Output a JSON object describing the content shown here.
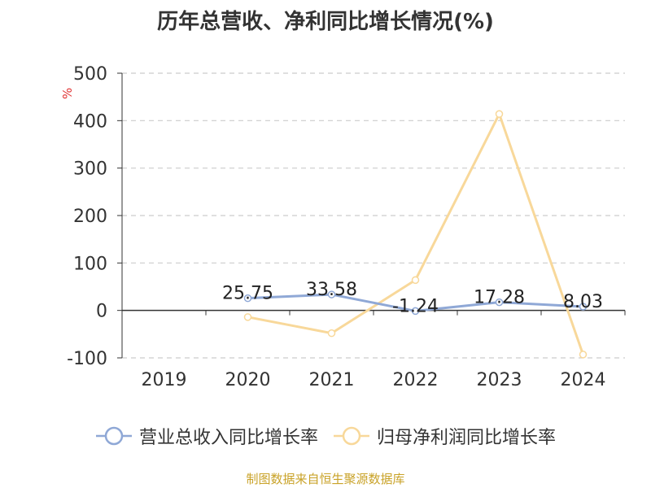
{
  "title": "历年总营收、净利同比增长情况(%)",
  "unit_label": "%",
  "source": "制图数据来自恒生聚源数据库",
  "chart_data": {
    "type": "line",
    "title": "历年总营收、净利同比增长情况(%)",
    "xlabel": "",
    "ylabel": "%",
    "categories": [
      "2019",
      "2020",
      "2021",
      "2022",
      "2023",
      "2024"
    ],
    "ylim": [
      -100,
      500
    ],
    "yticks": [
      -100,
      0,
      100,
      200,
      300,
      400,
      500
    ],
    "grid": true,
    "legend_position": "bottom",
    "series": [
      {
        "name": "营业总收入同比增长率",
        "color": "#8fa8d6",
        "values": [
          null,
          25.75,
          33.58,
          -1.24,
          17.28,
          8.03
        ],
        "labels": [
          null,
          "25.75",
          "33.58",
          "-1.24",
          "17.28",
          "8.03"
        ]
      },
      {
        "name": "归母净利润同比增长率",
        "color": "#f8d89a",
        "values": [
          null,
          -14,
          -48,
          64,
          414,
          -93
        ],
        "labels": [
          null,
          null,
          null,
          null,
          null,
          null
        ]
      }
    ]
  }
}
